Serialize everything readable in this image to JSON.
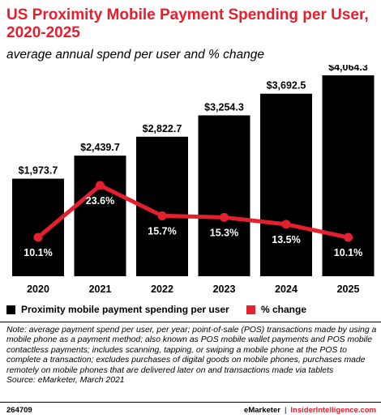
{
  "chart_data": {
    "type": "bar",
    "title": "US Proximity Mobile Payment Spending per User, 2020-2025",
    "subtitle": "average annual spend per user and % change",
    "categories": [
      "2020",
      "2021",
      "2022",
      "2023",
      "2024",
      "2025"
    ],
    "series": [
      {
        "name": "Proximity mobile payment spending per user",
        "type": "bar",
        "color": "#000000",
        "values": [
          1973.7,
          2439.7,
          2822.7,
          3254.3,
          3692.5,
          4064.3
        ],
        "labels": [
          "$1,973.7",
          "$2,439.7",
          "$2,822.7",
          "$3,254.3",
          "$3,692.5",
          "$4,064.3"
        ]
      },
      {
        "name": "% change",
        "type": "line",
        "color": "#e4202f",
        "values": [
          10.1,
          23.6,
          15.7,
          15.3,
          13.5,
          10.1
        ],
        "labels": [
          "10.1%",
          "23.6%",
          "15.7%",
          "15.3%",
          "13.5%",
          "10.1%"
        ]
      }
    ],
    "bar_axis_range": [
      0,
      4064.3
    ],
    "line_axis_range": [
      0,
      40
    ],
    "legend_position": "bottom-left",
    "grid": false
  },
  "note": {
    "text": "Note: average payment spend per user, per year; point-of-sale (POS) transactions made by using a mobile phone as a payment method; also known as POS mobile wallet payments and POS mobile contactless payments; includes scanning, tapping, or swiping a mobile phone at the POS to complete a transaction; excludes purchases of digital goods on mobile phones, purchases made remotely on mobile phones that are delivered later on and transactions made via tablets",
    "source": "Source: eMarketer, March 2021"
  },
  "footer": {
    "id": "264709",
    "brand": "eMarketer",
    "separator": "|",
    "site": "InsiderIntelligence.com"
  }
}
